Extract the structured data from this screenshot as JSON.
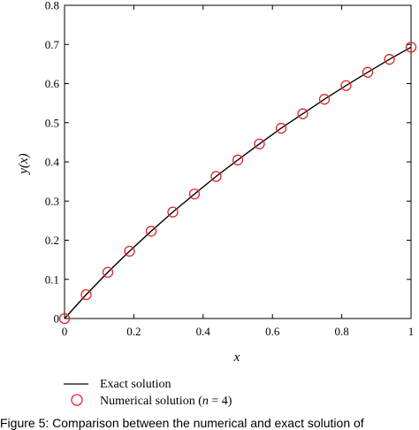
{
  "chart_data": {
    "type": "line",
    "xlabel": "x",
    "ylabel": "y(x)",
    "xlim": [
      0,
      1
    ],
    "ylim": [
      0,
      0.8
    ],
    "x_ticks": [
      "0",
      "0.2",
      "0.4",
      "0.6",
      "0.8",
      "1"
    ],
    "y_ticks": [
      "0",
      "0.1",
      "0.2",
      "0.3",
      "0.4",
      "0.5",
      "0.6",
      "0.7",
      "0.8"
    ],
    "grid": false,
    "legend_position": "bottom-left, below plot",
    "series": [
      {
        "name": "Exact solution",
        "style": "line",
        "color": "#000000",
        "x": [
          0,
          0.0625,
          0.125,
          0.1875,
          0.25,
          0.3125,
          0.375,
          0.4375,
          0.5,
          0.5625,
          0.625,
          0.6875,
          0.75,
          0.8125,
          0.875,
          0.9375,
          1
        ],
        "y": [
          0,
          0.061,
          0.118,
          0.172,
          0.223,
          0.272,
          0.318,
          0.363,
          0.405,
          0.446,
          0.486,
          0.523,
          0.56,
          0.595,
          0.629,
          0.662,
          0.693
        ]
      },
      {
        "name": "Numerical solution (n = 4)",
        "style": "markers",
        "marker": "circle",
        "color": "#e0252b",
        "x": [
          0,
          0.0625,
          0.125,
          0.1875,
          0.25,
          0.3125,
          0.375,
          0.4375,
          0.5,
          0.5625,
          0.625,
          0.6875,
          0.75,
          0.8125,
          0.875,
          0.9375,
          1
        ],
        "y": [
          0,
          0.061,
          0.118,
          0.172,
          0.223,
          0.272,
          0.318,
          0.363,
          0.405,
          0.446,
          0.486,
          0.523,
          0.56,
          0.595,
          0.629,
          0.662,
          0.693
        ]
      }
    ]
  },
  "legend": {
    "exact_label": "Exact solution",
    "numerical_label_prefix": "Numerical solution (",
    "numerical_label_n": "n",
    "numerical_label_suffix": " = 4)"
  },
  "caption": "Figure 5: Comparison between the numerical and exact solution of"
}
